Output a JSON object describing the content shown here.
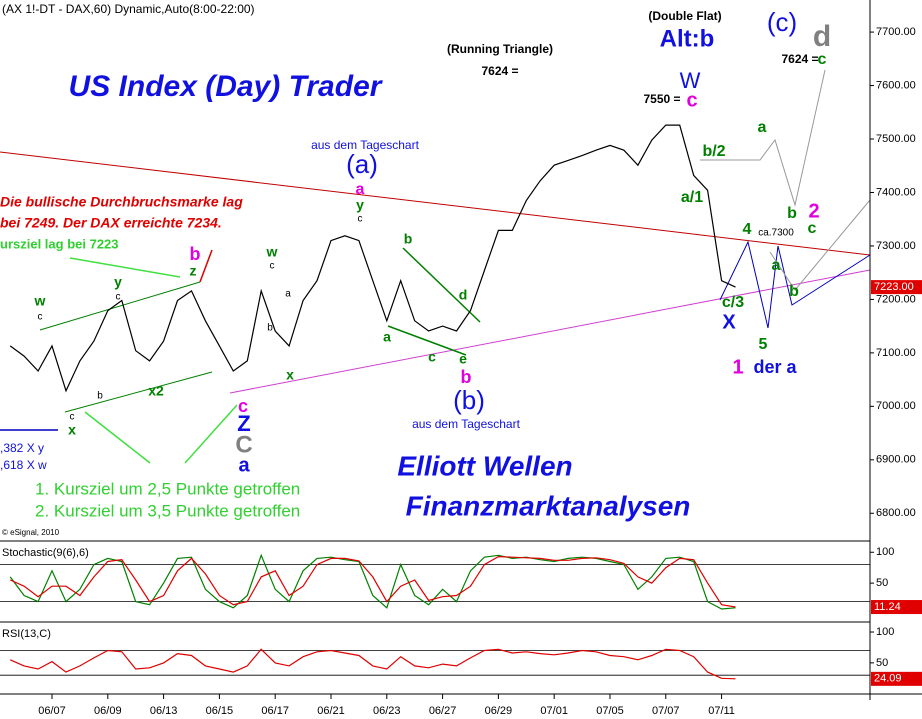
{
  "chart_data": [
    {
      "type": "line",
      "title": "(AX 1!-DT - DAX,60) Dynamic,Auto(8:00-22:00)",
      "x": [
        -1.5,
        -1,
        -0.5,
        0,
        0.5,
        1,
        1.5,
        2,
        2.5,
        3,
        3.5,
        4,
        4.5,
        5,
        5.5,
        6,
        6.5,
        7,
        7.5,
        8,
        8.5,
        9,
        9.5,
        10,
        10.5,
        11,
        11.5,
        12,
        12.5,
        13,
        13.5,
        14,
        14.5,
        15,
        15.5,
        16,
        16.5,
        17,
        17.5,
        18,
        18.5,
        19,
        19.5,
        20,
        20.5,
        21,
        21.5,
        22,
        22.5,
        23,
        23.5,
        24,
        24.5
      ],
      "values": [
        7113,
        7094,
        7066,
        7113,
        7029,
        7085,
        7122,
        7179,
        7198,
        7104,
        7085,
        7122,
        7198,
        7216,
        7160,
        7113,
        7066,
        7085,
        7216,
        7141,
        7113,
        7198,
        7235,
        7310,
        7319,
        7310,
        7235,
        7160,
        7235,
        7160,
        7141,
        7150,
        7141,
        7179,
        7254,
        7329,
        7329,
        7385,
        7422,
        7451,
        7460,
        7469,
        7479,
        7488,
        7479,
        7451,
        7498,
        7526,
        7526,
        7432,
        7404,
        7235,
        7223
      ],
      "color": "#000000",
      "xlim": [
        -1.864,
        29.32
      ],
      "ylim": [
        6750,
        7760
      ],
      "yticks": [
        {
          "value": 6800,
          "label": "6800.00"
        },
        {
          "value": 6900,
          "label": "6900.00"
        },
        {
          "value": 7000,
          "label": "7000.00"
        },
        {
          "value": 7100,
          "label": "7100.00"
        },
        {
          "value": 7200,
          "label": "7200.00"
        },
        {
          "value": 7300,
          "label": "7300.00"
        },
        {
          "value": 7400,
          "label": "7400.00"
        },
        {
          "value": 7500,
          "label": "7500.00"
        },
        {
          "value": 7600,
          "label": "7600.00"
        },
        {
          "value": 7700,
          "label": "7700.00"
        }
      ],
      "last_price": {
        "value": 7223,
        "label": "7223.00"
      },
      "annotations": [
        "(Double Flat)",
        "Alt:b",
        "(c)",
        "d",
        "(Running Triangle)",
        "7624 =",
        "7624 =",
        "c",
        "US Index (Day) Trader",
        "W",
        "7550 =",
        "c",
        "aus dem Tageschart",
        "(a)",
        "a",
        "y",
        "c",
        "Die bullische Durchbruchsmarke lag",
        "bei 7249. Der DAX erreichte 7234.",
        "ursziel lag bei 7223",
        "b",
        "z",
        "a",
        "b/2",
        "a/1",
        "4",
        "ca.7300",
        "b",
        "2",
        "c",
        "a",
        "b",
        "c/3",
        "X",
        "5",
        "1",
        "der a",
        "w",
        "c",
        "y",
        "c",
        "b",
        "x2",
        "w",
        "c",
        "a",
        "b",
        "x",
        "b",
        "a",
        "c",
        "e",
        "d",
        "b",
        "c",
        "Z",
        "C",
        "a",
        "c",
        "x",
        "(b)",
        "aus dem Tageschart",
        ",382 X y",
        ",618 X w",
        "Elliott Wellen",
        "1. Kursziel um 2,5 Punkte getroffen",
        "2. Kursziel um 3,5 Punkte getroffen",
        "Finanzmarktanalysen",
        "© eSignal, 2010"
      ]
    },
    {
      "type": "line",
      "title": "Stochastic(9(6),6)",
      "x": [
        -1.5,
        -1,
        -0.5,
        0,
        0.5,
        1,
        1.5,
        2,
        2.5,
        3,
        3.5,
        4,
        4.5,
        5,
        5.5,
        6,
        6.5,
        7,
        7.5,
        8,
        8.5,
        9,
        9.5,
        10,
        10.5,
        11,
        11.5,
        12,
        12.5,
        13,
        13.5,
        14,
        14.5,
        15,
        15.5,
        16,
        16.5,
        17,
        17.5,
        18,
        18.5,
        19,
        19.5,
        20,
        20.5,
        21,
        21.5,
        22,
        22.5,
        23,
        23.5,
        24,
        24.5
      ],
      "series": [
        {
          "color": "#008000",
          "values": [
            60,
            30,
            20,
            70,
            20,
            40,
            80,
            90,
            85,
            20,
            15,
            50,
            90,
            92,
            40,
            20,
            10,
            30,
            95,
            40,
            20,
            70,
            90,
            92,
            88,
            85,
            30,
            10,
            80,
            30,
            15,
            40,
            20,
            70,
            92,
            95,
            90,
            92,
            88,
            85,
            90,
            92,
            90,
            85,
            80,
            40,
            60,
            90,
            92,
            85,
            20,
            8,
            10
          ]
        },
        {
          "color": "#e00000",
          "values": [
            55,
            45,
            28,
            45,
            45,
            30,
            60,
            85,
            88,
            55,
            20,
            30,
            70,
            90,
            65,
            30,
            15,
            20,
            60,
            70,
            30,
            45,
            80,
            90,
            90,
            86,
            60,
            20,
            45,
            55,
            22,
            28,
            30,
            45,
            80,
            93,
            92,
            91,
            90,
            87,
            87,
            90,
            91,
            88,
            82,
            60,
            50,
            75,
            90,
            88,
            50,
            15,
            11.24
          ]
        }
      ],
      "xlim": [
        -1.864,
        29.32
      ],
      "ylim": [
        -13,
        115
      ],
      "yticks": [
        50,
        100
      ],
      "levels": [
        20,
        80
      ]
    },
    {
      "type": "line",
      "title": "RSI(13,C)",
      "x": [
        -1.5,
        -1,
        -0.5,
        0,
        0.5,
        1,
        1.5,
        2,
        2.5,
        3,
        3.5,
        4,
        4.5,
        5,
        5.5,
        6,
        6.5,
        7,
        7.5,
        8,
        8.5,
        9,
        9.5,
        10,
        10.5,
        11,
        11.5,
        12,
        12.5,
        13,
        13.5,
        14,
        14.5,
        15,
        15.5,
        16,
        16.5,
        17,
        17.5,
        18,
        18.5,
        19,
        19.5,
        20,
        20.5,
        21,
        21.5,
        22,
        22.5,
        23,
        23.5,
        24,
        24.5
      ],
      "values": [
        55,
        45,
        40,
        52,
        35,
        45,
        58,
        70,
        68,
        40,
        42,
        50,
        65,
        62,
        45,
        40,
        35,
        45,
        72,
        50,
        45,
        60,
        68,
        70,
        66,
        62,
        45,
        40,
        60,
        45,
        42,
        48,
        45,
        58,
        70,
        72,
        66,
        68,
        65,
        63,
        66,
        70,
        68,
        62,
        60,
        55,
        62,
        72,
        70,
        60,
        35,
        25,
        24.09
      ],
      "color": "#e00000",
      "xlim": [
        -1.864,
        29.32
      ],
      "ylim": [
        6,
        113
      ],
      "yticks": [
        50,
        100
      ],
      "levels": [
        30,
        70
      ],
      "xticks": [
        {
          "value": 0,
          "label": "06/07"
        },
        {
          "value": 2,
          "label": "06/09"
        },
        {
          "value": 4,
          "label": "06/13"
        },
        {
          "value": 6,
          "label": "06/15"
        },
        {
          "value": 8,
          "label": "06/17"
        },
        {
          "value": 10,
          "label": "06/21"
        },
        {
          "value": 12,
          "label": "06/23"
        },
        {
          "value": 14,
          "label": "06/27"
        },
        {
          "value": 16,
          "label": "06/29"
        },
        {
          "value": 18,
          "label": "07/01"
        },
        {
          "value": 20,
          "label": "07/05"
        },
        {
          "value": 22,
          "label": "07/07"
        },
        {
          "value": 24,
          "label": "07/11"
        }
      ]
    }
  ]
}
